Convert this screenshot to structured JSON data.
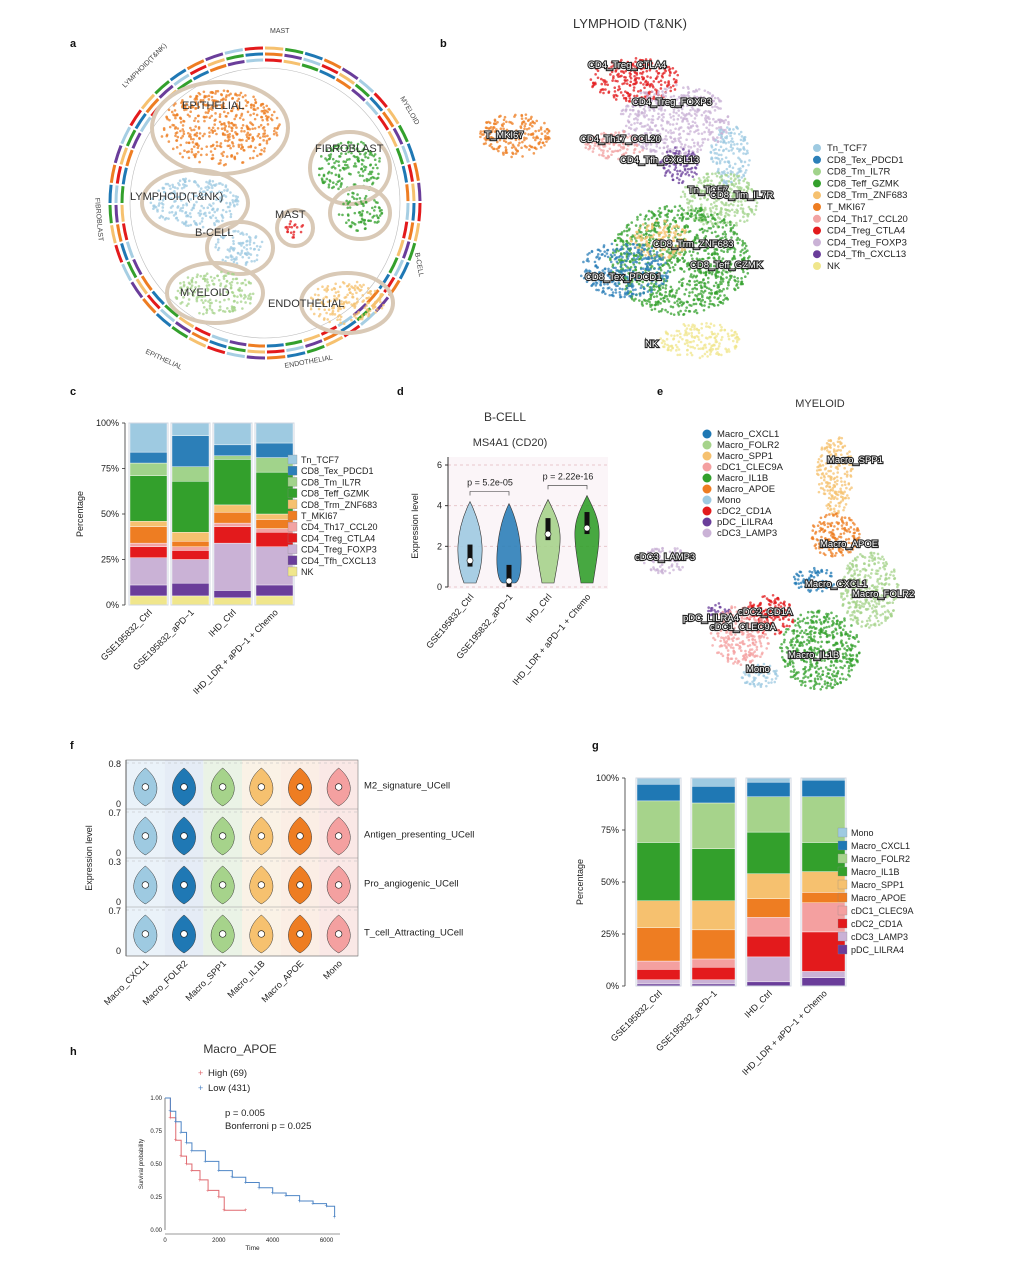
{
  "panel_labels": {
    "a": "a",
    "b": "b",
    "c": "c",
    "d": "d",
    "e": "e",
    "f": "f",
    "g": "g",
    "h": "h"
  },
  "colors": {
    "Tn_TCF7": "#9ecae1",
    "CD8_Tex_PDCD1": "#2c7fb8",
    "CD8_Tm_IL7R": "#a1d38b",
    "CD8_Teff_GZMK": "#33a02c",
    "CD8_Trm_ZNF683": "#f6c16f",
    "T_MKI67": "#ee7d22",
    "CD4_Th17_CCL20": "#f2a3a3",
    "CD4_Treg_CTLA4": "#e31a1c",
    "CD4_Treg_FOXP3": "#cab2d6",
    "CD4_Tfh_CXCL13": "#6a3d9a",
    "NK": "#f0e68c",
    "Mono": "#9ecae1",
    "Macro_CXCL1": "#1f78b4",
    "Macro_FOLR2": "#a6d38b",
    "Macro_IL1B": "#33a02c",
    "Macro_SPP1": "#f6c16f",
    "Macro_APOE": "#ee7d22",
    "cDC1_CLEC9A": "#f4a0a0",
    "cDC2_CD1A": "#e31a1c",
    "cDC3_LAMP3": "#cab2d6",
    "pDC_LILRA4": "#6a3d9a"
  },
  "panel_a": {
    "clusters": [
      "EPITHELIAL",
      "FIBROBLAST",
      "LYMPHOID(T&NK)",
      "MAST",
      "B-CELL",
      "MYELOID",
      "ENDOTHELIAL"
    ],
    "ring_labels": [
      "MAST",
      "MYELOID",
      "B-CELL",
      "ENDOTHELIAL",
      "EPITHELIAL",
      "FIBROBLAST",
      "LYMPHOID(T&NK)"
    ]
  },
  "panel_b": {
    "title": "LYMPHOID (T&NK)",
    "cluster_labels": [
      "CD4_Treg_CTLA4",
      "CD4_Treg_FOXP3",
      "T_MKI67",
      "CD4_Th17_CCL20",
      "CD4_Tfh_CXCL13",
      "Tn_TCF7",
      "CD8_Tm_IL7R",
      "CD8_Trm_ZNF683",
      "CD8_Teff_GZMK",
      "CD8_Tex_PDCD1",
      "NK"
    ],
    "legend": [
      "Tn_TCF7",
      "CD8_Tex_PDCD1",
      "CD8_Tm_IL7R",
      "CD8_Teff_GZMK",
      "CD8_Trm_ZNF683",
      "T_MKI67",
      "CD4_Th17_CCL20",
      "CD4_Treg_CTLA4",
      "CD4_Treg_FOXP3",
      "CD4_Tfh_CXCL13",
      "NK"
    ]
  },
  "panel_c": {
    "chart_data": {
      "type": "bar",
      "stacked": true,
      "ylabel": "Percentage",
      "yticks": [
        "0%",
        "25%",
        "50%",
        "75%",
        "100%"
      ],
      "categories": [
        "GSE195832_Ctrl",
        "GSE195832_aPD−1",
        "IHD_Ctrl",
        "IHD_LDR + aPD−1 + Chemo"
      ],
      "series": [
        {
          "name": "NK",
          "values": [
            5,
            5,
            4,
            5
          ]
        },
        {
          "name": "CD4_Tfh_CXCL13",
          "values": [
            6,
            7,
            4,
            6
          ]
        },
        {
          "name": "CD4_Treg_FOXP3",
          "values": [
            15,
            13,
            26,
            21
          ]
        },
        {
          "name": "CD4_Treg_CTLA4",
          "values": [
            6,
            5,
            9,
            8
          ]
        },
        {
          "name": "CD4_Th17_CCL20",
          "values": [
            2,
            2,
            2,
            2
          ]
        },
        {
          "name": "T_MKI67",
          "values": [
            9,
            3,
            6,
            5
          ]
        },
        {
          "name": "CD8_Trm_ZNF683",
          "values": [
            3,
            5,
            4,
            3
          ]
        },
        {
          "name": "CD8_Teff_GZMK",
          "values": [
            25,
            28,
            25,
            23
          ]
        },
        {
          "name": "CD8_Tm_IL7R",
          "values": [
            7,
            8,
            2,
            8
          ]
        },
        {
          "name": "CD8_Tex_PDCD1",
          "values": [
            6,
            17,
            6,
            8
          ]
        },
        {
          "name": "Tn_TCF7",
          "values": [
            16,
            7,
            12,
            11
          ]
        }
      ],
      "legend_order": [
        "Tn_TCF7",
        "CD8_Tex_PDCD1",
        "CD8_Tm_IL7R",
        "CD8_Teff_GZMK",
        "CD8_Trm_ZNF683",
        "T_MKI67",
        "CD4_Th17_CCL20",
        "CD4_Treg_CTLA4",
        "CD4_Treg_FOXP3",
        "CD4_Tfh_CXCL13",
        "NK"
      ]
    }
  },
  "panel_d": {
    "title": "B-CELL",
    "subtitle": "MS4A1 (CD20)",
    "ylabel": "Expression level",
    "yticks": [
      "0",
      "2",
      "4",
      "6"
    ],
    "categories": [
      "GSE195832_Ctrl",
      "GSE195832_aPD−1",
      "IHD_Ctrl",
      "IHD_LDR + aPD−1 + Chemo"
    ],
    "pvalues": [
      "p = 5.2e-05",
      "p = 2.22e-16"
    ],
    "chart_data": {
      "type": "violin",
      "medians": [
        1.3,
        0.3,
        2.6,
        2.9
      ],
      "ylim": [
        0,
        6
      ]
    }
  },
  "panel_e": {
    "title": "MYELOID",
    "legend": [
      "Macro_CXCL1",
      "Macro_FOLR2",
      "Macro_SPP1",
      "cDC1_CLEC9A",
      "Macro_IL1B",
      "Macro_APOE",
      "Mono",
      "cDC2_CD1A",
      "pDC_LILRA4",
      "cDC3_LAMP3"
    ],
    "cluster_labels": [
      "Macro_SPP1",
      "cDC3_LAMP3",
      "Macro_APOE",
      "Macro_CXCL1",
      "Macro_FOLR2",
      "pDC_LILRA4",
      "cDC2_CD1A",
      "cDC1_CLEC9A",
      "Macro_IL1B",
      "Mono"
    ]
  },
  "panel_f": {
    "ylabel": "Expression level",
    "rows": [
      {
        "name": "M2_signature_UCell",
        "ticks": [
          "0.8",
          "0"
        ]
      },
      {
        "name": "Antigen_presenting_UCell",
        "ticks": [
          "0.7",
          "0"
        ]
      },
      {
        "name": "Pro_angiogenic_UCell",
        "ticks": [
          "0.3",
          "0"
        ]
      },
      {
        "name": "T_cell_Attracting_UCell",
        "ticks": [
          "0.7",
          "0"
        ]
      }
    ],
    "categories": [
      "Macro_CXCL1",
      "Macro_FOLR2",
      "Macro_SPP1",
      "Macro_IL1B",
      "Macro_APOE",
      "Mono"
    ]
  },
  "panel_g": {
    "chart_data": {
      "type": "bar",
      "stacked": true,
      "ylabel": "Percentage",
      "yticks": [
        "0%",
        "25%",
        "50%",
        "75%",
        "100%"
      ],
      "categories": [
        "GSE195832_Ctrl",
        "GSE195832_aPD−1",
        "IHD_Ctrl",
        "IHD_LDR + aPD−1 + Chemo"
      ],
      "series": [
        {
          "name": "pDC_LILRA4",
          "values": [
            1,
            1,
            2,
            4
          ]
        },
        {
          "name": "cDC3_LAMP3",
          "values": [
            2,
            2,
            12,
            3
          ]
        },
        {
          "name": "cDC2_CD1A",
          "values": [
            5,
            6,
            10,
            19
          ]
        },
        {
          "name": "cDC1_CLEC9A",
          "values": [
            4,
            4,
            9,
            14
          ]
        },
        {
          "name": "Macro_APOE",
          "values": [
            16,
            14,
            9,
            5
          ]
        },
        {
          "name": "Macro_SPP1",
          "values": [
            13,
            14,
            12,
            10
          ]
        },
        {
          "name": "Macro_IL1B",
          "values": [
            28,
            25,
            20,
            14
          ]
        },
        {
          "name": "Macro_FOLR2",
          "values": [
            20,
            22,
            17,
            22
          ]
        },
        {
          "name": "Macro_CXCL1",
          "values": [
            8,
            8,
            7,
            8
          ]
        },
        {
          "name": "Mono",
          "values": [
            3,
            4,
            2,
            1
          ]
        }
      ],
      "legend_order": [
        "Mono",
        "Macro_CXCL1",
        "Macro_FOLR2",
        "Macro_IL1B",
        "Macro_SPP1",
        "Macro_APOE",
        "cDC1_CLEC9A",
        "cDC2_CD1A",
        "cDC3_LAMP3",
        "pDC_LILRA4"
      ]
    }
  },
  "panel_h": {
    "title": "Macro_APOE",
    "legend": [
      "High (69)",
      "Low (431)"
    ],
    "pvalue": "p = 0.005",
    "bonferroni": "Bonferroni p = 0.025",
    "ylabel": "Survival probability",
    "xlabel": "Time",
    "yticks": [
      "0.00",
      "0.25",
      "0.50",
      "0.75",
      "1.00"
    ],
    "xticks": [
      "0",
      "2000",
      "4000",
      "6000"
    ],
    "chart_data": {
      "type": "line",
      "series": [
        {
          "name": "High (69)",
          "x": [
            0,
            200,
            400,
            600,
            800,
            1000,
            1300,
            1600,
            2000,
            2200,
            3000
          ],
          "y": [
            1.0,
            0.85,
            0.68,
            0.56,
            0.5,
            0.45,
            0.38,
            0.3,
            0.25,
            0.15,
            0.15
          ]
        },
        {
          "name": "Low (431)",
          "x": [
            0,
            200,
            400,
            600,
            800,
            1000,
            1500,
            2000,
            2500,
            3000,
            3500,
            4000,
            4500,
            5000,
            5500,
            6000,
            6300
          ],
          "y": [
            1.0,
            0.9,
            0.82,
            0.74,
            0.66,
            0.6,
            0.52,
            0.45,
            0.4,
            0.36,
            0.32,
            0.28,
            0.26,
            0.22,
            0.2,
            0.18,
            0.1
          ]
        }
      ],
      "xlim": [
        0,
        6500
      ],
      "ylim": [
        0,
        1
      ]
    }
  }
}
